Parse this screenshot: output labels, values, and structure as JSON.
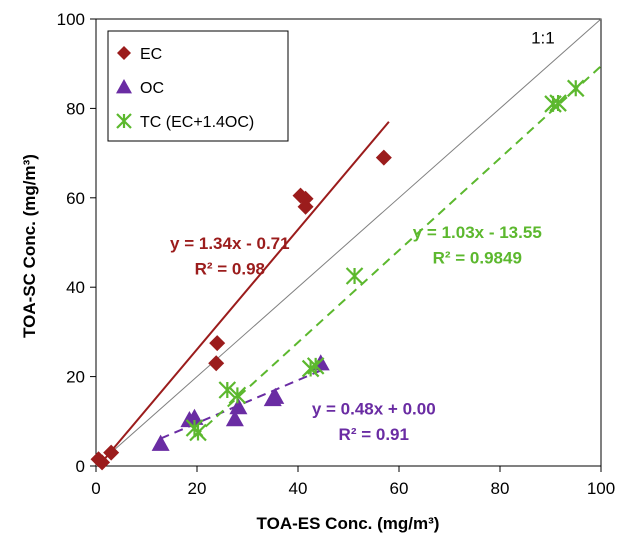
{
  "chart_data": {
    "type": "scatter",
    "xlabel": "TOA-ES Conc. (mg/m³)",
    "ylabel": "TOA-SC Conc. (mg/m³)",
    "xlim": [
      0,
      100
    ],
    "ylim": [
      0,
      100
    ],
    "x_ticks": [
      0,
      20,
      40,
      60,
      80,
      100
    ],
    "y_ticks": [
      0,
      20,
      40,
      60,
      80,
      100
    ],
    "grid": false,
    "legend_position": "top-left",
    "reference_line": {
      "label": "1:1",
      "slope": 1,
      "intercept": 0,
      "color": "#808080"
    },
    "series": [
      {
        "name": "EC",
        "marker": "diamond",
        "color": "#9b1c1c",
        "points": [
          [
            0.5,
            1.5
          ],
          [
            1.2,
            0.8
          ],
          [
            3,
            3
          ],
          [
            24,
            27.5
          ],
          [
            23.8,
            23
          ],
          [
            40.5,
            60.5
          ],
          [
            41.5,
            59.8
          ],
          [
            41.5,
            58
          ],
          [
            57,
            69
          ]
        ],
        "fit": {
          "slope": 1.34,
          "intercept": -0.71,
          "x_range": [
            0,
            58
          ],
          "style": "solid",
          "equation": "y = 1.34x - 0.71",
          "r2": "R² = 0.98"
        }
      },
      {
        "name": "OC",
        "marker": "triangle",
        "color": "#6a2ca3",
        "points": [
          [
            12.8,
            5
          ],
          [
            18.5,
            10.3
          ],
          [
            19.5,
            10.8
          ],
          [
            27.5,
            10.5
          ],
          [
            28.2,
            13.2
          ],
          [
            35,
            15
          ],
          [
            35.5,
            15.5
          ],
          [
            44.5,
            23
          ]
        ],
        "fit": {
          "slope": 0.48,
          "intercept": 0.0,
          "x_range": [
            12.8,
            44.5
          ],
          "style": "dashed",
          "equation": "y = 0.48x + 0.00",
          "r2": "R² = 0.91"
        }
      },
      {
        "name": "TC (EC+1.4OC)",
        "marker": "asterisk",
        "color": "#5cb82e",
        "points": [
          [
            19.5,
            8.5
          ],
          [
            20.2,
            7.5
          ],
          [
            26,
            17
          ],
          [
            28,
            15.8
          ],
          [
            42.5,
            21.8
          ],
          [
            43.5,
            22.4
          ],
          [
            51.2,
            42.5
          ],
          [
            90.5,
            81
          ],
          [
            91.5,
            81.2
          ],
          [
            95,
            84.5
          ]
        ],
        "fit": {
          "slope": 1.03,
          "intercept": -13.55,
          "x_range": [
            19.5,
            100
          ],
          "style": "dashed",
          "equation": "y = 1.03x - 13.55",
          "r2": "R² = 0.9849"
        }
      }
    ]
  }
}
